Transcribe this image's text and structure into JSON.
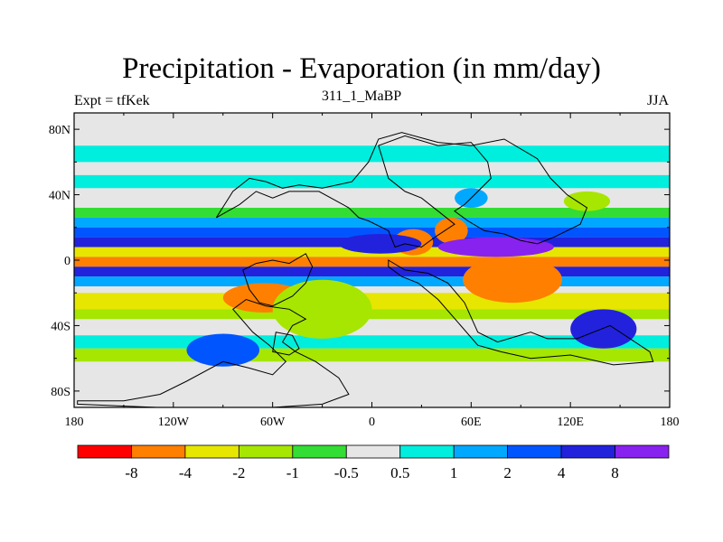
{
  "header": {
    "title": "Precipitation - Evaporation (in mm/day)",
    "subtitle": "311_1_MaBP",
    "expt": "Expt = tfKek",
    "season": "JJA"
  },
  "chart_data": {
    "type": "heatmap",
    "title": "Precipitation - Evaporation (in mm/day)",
    "subtitle": "311_1_MaBP",
    "xlim": [
      -180,
      180
    ],
    "ylim": [
      -90,
      90
    ],
    "x_ticks": [
      {
        "value": -180,
        "label": "180"
      },
      {
        "value": -120,
        "label": "120W"
      },
      {
        "value": -60,
        "label": "60W"
      },
      {
        "value": 0,
        "label": "0"
      },
      {
        "value": 60,
        "label": "60E"
      },
      {
        "value": 120,
        "label": "120E"
      },
      {
        "value": 180,
        "label": "180"
      }
    ],
    "y_ticks": [
      {
        "value": 80,
        "label": "80N"
      },
      {
        "value": 40,
        "label": "40N"
      },
      {
        "value": 0,
        "label": "0"
      },
      {
        "value": -40,
        "label": "40S"
      },
      {
        "value": -80,
        "label": "80S"
      }
    ],
    "colorbar": {
      "colors": [
        "#ff0000",
        "#ff7f00",
        "#e6e600",
        "#a6e600",
        "#33dd33",
        "#e6e6e6",
        "#00eedd",
        "#00a8ff",
        "#0055ff",
        "#2222dd",
        "#8822ee"
      ],
      "boundary_labels": [
        "-8",
        "-4",
        "-2",
        "-1",
        "-0.5",
        "0.5",
        "1",
        "2",
        "4",
        "8"
      ]
    },
    "zonal_bands": [
      {
        "lat": [
          70,
          60
        ],
        "category": 6
      },
      {
        "lat": [
          52,
          44
        ],
        "category": 6
      },
      {
        "lat": [
          32,
          26
        ],
        "category": 4
      },
      {
        "lat": [
          26,
          20
        ],
        "category": 7
      },
      {
        "lat": [
          20,
          14
        ],
        "category": 8
      },
      {
        "lat": [
          14,
          8
        ],
        "category": 9
      },
      {
        "lat": [
          8,
          2
        ],
        "category": 2
      },
      {
        "lat": [
          2,
          -4
        ],
        "category": 1
      },
      {
        "lat": [
          -4,
          -10
        ],
        "category": 9
      },
      {
        "lat": [
          -10,
          -16
        ],
        "category": 7
      },
      {
        "lat": [
          -20,
          -30
        ],
        "category": 2
      },
      {
        "lat": [
          -30,
          -36
        ],
        "category": 3
      },
      {
        "lat": [
          -46,
          -54
        ],
        "category": 6
      },
      {
        "lat": [
          -54,
          -62
        ],
        "category": 3
      }
    ],
    "blobs": [
      {
        "lon": -65,
        "lat": -23,
        "rx": 25,
        "ry": 9,
        "category": 1
      },
      {
        "lon": 48,
        "lat": 18,
        "rx": 10,
        "ry": 8,
        "category": 1
      },
      {
        "lon": 25,
        "lat": 11,
        "rx": 12,
        "ry": 8,
        "category": 1
      },
      {
        "lon": 85,
        "lat": -12,
        "rx": 30,
        "ry": 14,
        "category": 1
      },
      {
        "lon": 5,
        "lat": 10,
        "rx": 25,
        "ry": 6,
        "category": 9
      },
      {
        "lon": 75,
        "lat": 8,
        "rx": 35,
        "ry": 6,
        "category": 10
      },
      {
        "lon": -30,
        "lat": -30,
        "rx": 30,
        "ry": 18,
        "category": 3
      },
      {
        "lon": 140,
        "lat": -42,
        "rx": 20,
        "ry": 12,
        "category": 9
      },
      {
        "lon": -90,
        "lat": -55,
        "rx": 22,
        "ry": 10,
        "category": 8
      },
      {
        "lon": 60,
        "lat": 38,
        "rx": 10,
        "ry": 6,
        "category": 7
      },
      {
        "lon": 130,
        "lat": 36,
        "rx": 14,
        "ry": 6,
        "category": 3
      }
    ],
    "land_outlines": [
      [
        [
          -94,
          26
        ],
        [
          -80,
          34
        ],
        [
          -70,
          42
        ],
        [
          -60,
          38
        ],
        [
          -50,
          42
        ],
        [
          -32,
          42
        ],
        [
          -14,
          32
        ],
        [
          -8,
          26
        ],
        [
          -2,
          24
        ],
        [
          10,
          18
        ],
        [
          14,
          8
        ],
        [
          20,
          10
        ],
        [
          30,
          8
        ],
        [
          38,
          14
        ],
        [
          44,
          18
        ],
        [
          50,
          22
        ],
        [
          40,
          30
        ],
        [
          30,
          38
        ],
        [
          20,
          42
        ],
        [
          10,
          50
        ],
        [
          4,
          70
        ],
        [
          20,
          76
        ],
        [
          40,
          70
        ],
        [
          60,
          72
        ],
        [
          70,
          60
        ],
        [
          72,
          50
        ],
        [
          62,
          40
        ],
        [
          56,
          34
        ],
        [
          50,
          30
        ],
        [
          58,
          24
        ],
        [
          68,
          18
        ],
        [
          80,
          16
        ],
        [
          90,
          12
        ],
        [
          100,
          10
        ],
        [
          110,
          14
        ],
        [
          126,
          22
        ],
        [
          130,
          32
        ],
        [
          118,
          40
        ],
        [
          108,
          50
        ],
        [
          100,
          62
        ],
        [
          80,
          74
        ],
        [
          60,
          70
        ],
        [
          40,
          72
        ],
        [
          18,
          78
        ],
        [
          4,
          74
        ],
        [
          -2,
          60
        ],
        [
          -12,
          48
        ],
        [
          -30,
          44
        ],
        [
          -44,
          46
        ],
        [
          -54,
          44
        ],
        [
          -64,
          48
        ],
        [
          -74,
          50
        ],
        [
          -84,
          42
        ],
        [
          -94,
          26
        ]
      ],
      [
        [
          -78,
          -6
        ],
        [
          -70,
          -2
        ],
        [
          -60,
          0
        ],
        [
          -50,
          -2
        ],
        [
          -40,
          4
        ],
        [
          -36,
          -4
        ],
        [
          -40,
          -14
        ],
        [
          -48,
          -22
        ],
        [
          -60,
          -28
        ],
        [
          -68,
          -26
        ],
        [
          -74,
          -18
        ],
        [
          -78,
          -6
        ]
      ],
      [
        [
          10,
          0
        ],
        [
          20,
          -6
        ],
        [
          34,
          -8
        ],
        [
          46,
          -14
        ],
        [
          56,
          -26
        ],
        [
          64,
          -44
        ],
        [
          76,
          -50
        ],
        [
          96,
          -44
        ],
        [
          106,
          -48
        ],
        [
          124,
          -48
        ],
        [
          144,
          -40
        ],
        [
          168,
          -56
        ],
        [
          170,
          -62
        ],
        [
          146,
          -64
        ],
        [
          120,
          -58
        ],
        [
          96,
          -60
        ],
        [
          78,
          -56
        ],
        [
          64,
          -52
        ],
        [
          52,
          -38
        ],
        [
          40,
          -24
        ],
        [
          28,
          -14
        ],
        [
          18,
          -10
        ],
        [
          10,
          -4
        ],
        [
          10,
          0
        ]
      ],
      [
        [
          -84,
          -30
        ],
        [
          -72,
          -44
        ],
        [
          -62,
          -52
        ],
        [
          -52,
          -62
        ],
        [
          -60,
          -70
        ],
        [
          -74,
          -66
        ],
        [
          -90,
          -62
        ],
        [
          -112,
          -74
        ],
        [
          -128,
          -82
        ],
        [
          -150,
          -86
        ],
        [
          -178,
          -86
        ],
        [
          -178,
          -88
        ],
        [
          -130,
          -90
        ],
        [
          -60,
          -90
        ],
        [
          -30,
          -88
        ],
        [
          -14,
          -82
        ],
        [
          -20,
          -72
        ],
        [
          -34,
          -62
        ],
        [
          -46,
          -56
        ],
        [
          -54,
          -50
        ],
        [
          -48,
          -40
        ],
        [
          -40,
          -36
        ],
        [
          -50,
          -30
        ],
        [
          -64,
          -28
        ],
        [
          -76,
          -24
        ],
        [
          -84,
          -30
        ]
      ],
      [
        [
          -58,
          -44
        ],
        [
          -48,
          -46
        ],
        [
          -44,
          -54
        ],
        [
          -50,
          -58
        ],
        [
          -60,
          -56
        ],
        [
          -58,
          -44
        ]
      ]
    ]
  }
}
